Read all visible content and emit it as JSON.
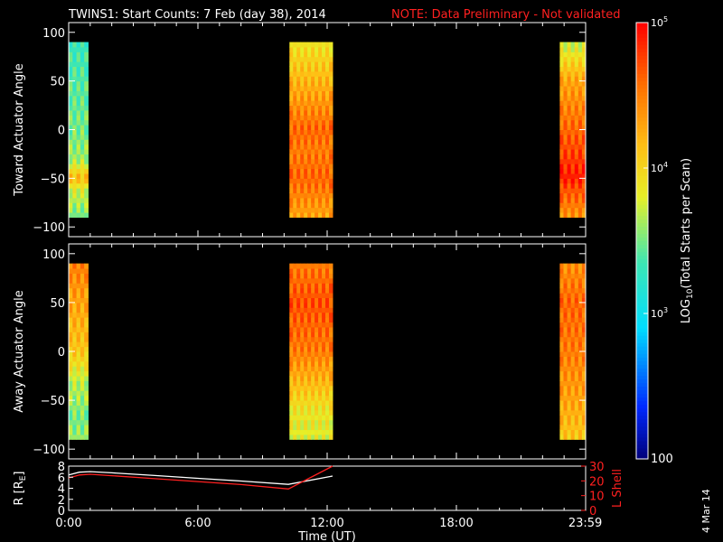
{
  "title": {
    "main": "TWINS1: Start Counts:  7 Feb (day  38), 2014",
    "note": "NOTE: Data Preliminary - Not validated"
  },
  "side_date": "4 Mar 14",
  "chart_data": [
    {
      "type": "heatmap",
      "panel": "toward",
      "ylabel": "Toward Actuator Angle",
      "ylim": [
        -110,
        110
      ],
      "yticks": [
        100,
        50,
        0,
        -50,
        -100
      ],
      "xlim": [
        0,
        24
      ],
      "angle_range": [
        -90,
        90
      ],
      "data_intervals_hours": [
        [
          0.0,
          0.9
        ],
        [
          10.25,
          12.25
        ],
        [
          22.8,
          24.0
        ]
      ],
      "intervals": [
        {
          "start": 0.0,
          "end": 0.9,
          "angle_profile_log10": [
            [
              -88,
              3.5
            ],
            [
              -60,
              3.8
            ],
            [
              -50,
              4.2
            ],
            [
              -30,
              3.6
            ],
            [
              0,
              3.5
            ],
            [
              50,
              3.4
            ],
            [
              90,
              3.3
            ]
          ]
        },
        {
          "start": 10.25,
          "end": 12.25,
          "angle_profile_log10": [
            [
              -88,
              4.3
            ],
            [
              -50,
              4.6
            ],
            [
              -20,
              4.5
            ],
            [
              0,
              4.6
            ],
            [
              50,
              4.2
            ],
            [
              90,
              3.9
            ]
          ]
        },
        {
          "start": 22.8,
          "end": 24.0,
          "angle_profile_log10": [
            [
              -88,
              4.4
            ],
            [
              -60,
              4.7
            ],
            [
              -50,
              4.9
            ],
            [
              0,
              4.6
            ],
            [
              50,
              4.3
            ],
            [
              90,
              3.7
            ]
          ]
        }
      ]
    },
    {
      "type": "heatmap",
      "panel": "away",
      "ylabel": "Away Actuator Angle",
      "ylim": [
        -110,
        110
      ],
      "yticks": [
        100,
        50,
        0,
        -50,
        -100
      ],
      "xlim": [
        0,
        24
      ],
      "angle_range": [
        -90,
        90
      ],
      "data_intervals_hours": [
        [
          0.0,
          0.9
        ],
        [
          10.25,
          12.25
        ],
        [
          22.8,
          24.0
        ]
      ],
      "intervals": [
        {
          "start": 0.0,
          "end": 0.9,
          "angle_profile_log10": [
            [
              -88,
              3.6
            ],
            [
              -70,
              3.5
            ],
            [
              -30,
              3.7
            ],
            [
              0,
              4.1
            ],
            [
              50,
              4.3
            ],
            [
              90,
              4.5
            ]
          ]
        },
        {
          "start": 10.25,
          "end": 12.25,
          "angle_profile_log10": [
            [
              -88,
              3.8
            ],
            [
              -60,
              3.9
            ],
            [
              0,
              4.5
            ],
            [
              50,
              4.7
            ],
            [
              90,
              4.5
            ]
          ]
        },
        {
          "start": 22.8,
          "end": 24.0,
          "angle_profile_log10": [
            [
              -88,
              4.1
            ],
            [
              -50,
              4.3
            ],
            [
              0,
              4.5
            ],
            [
              50,
              4.6
            ],
            [
              90,
              4.4
            ]
          ]
        }
      ]
    },
    {
      "type": "line",
      "panel": "orbit",
      "ylabel": "R [R",
      "ylabel_sub": "E",
      "ylabel_end": "]",
      "ylim": [
        0,
        8
      ],
      "yticks": [
        8,
        6,
        4,
        2,
        0
      ],
      "y2label": "L Shell",
      "y2lim": [
        0,
        30
      ],
      "y2ticks": [
        30,
        20,
        10,
        0
      ],
      "xlabel": "Time (UT)",
      "xticks": [
        {
          "x": 0,
          "label": "0:00"
        },
        {
          "x": 6,
          "label": "6:00"
        },
        {
          "x": 12,
          "label": "12:00"
        },
        {
          "x": 18,
          "label": "18:00"
        },
        {
          "x": 23.983,
          "label": "23:59"
        }
      ],
      "series": [
        {
          "color": "#ffffff",
          "axis": "left",
          "x": [
            0,
            0.5,
            1,
            2,
            4,
            6,
            8,
            10.2,
            12.25
          ],
          "y": [
            6.4,
            6.9,
            7.0,
            6.8,
            6.3,
            5.8,
            5.3,
            4.7,
            6.2
          ]
        },
        {
          "color": "#ff2020",
          "axis": "right",
          "x": [
            0,
            0.5,
            1,
            2,
            4,
            6,
            8,
            10.2,
            12.25
          ],
          "y": [
            22,
            24,
            24.5,
            23.5,
            21.5,
            19.5,
            17.5,
            14.5,
            30
          ]
        }
      ]
    },
    {
      "type": "heatmap",
      "panel": "colorbar",
      "ylabel": "LOG",
      "ylabel_sub": "10",
      "ylabel_end": "(Total Starts per Scan)",
      "scale": "log",
      "range": [
        100,
        100000
      ],
      "ticks": [
        {
          "log10": 5,
          "base": "10",
          "exp": "5"
        },
        {
          "log10": 4,
          "base": "10",
          "exp": "4"
        },
        {
          "log10": 3,
          "base": "10",
          "exp": "3"
        },
        {
          "log10": 2,
          "label": "100"
        }
      ]
    }
  ]
}
